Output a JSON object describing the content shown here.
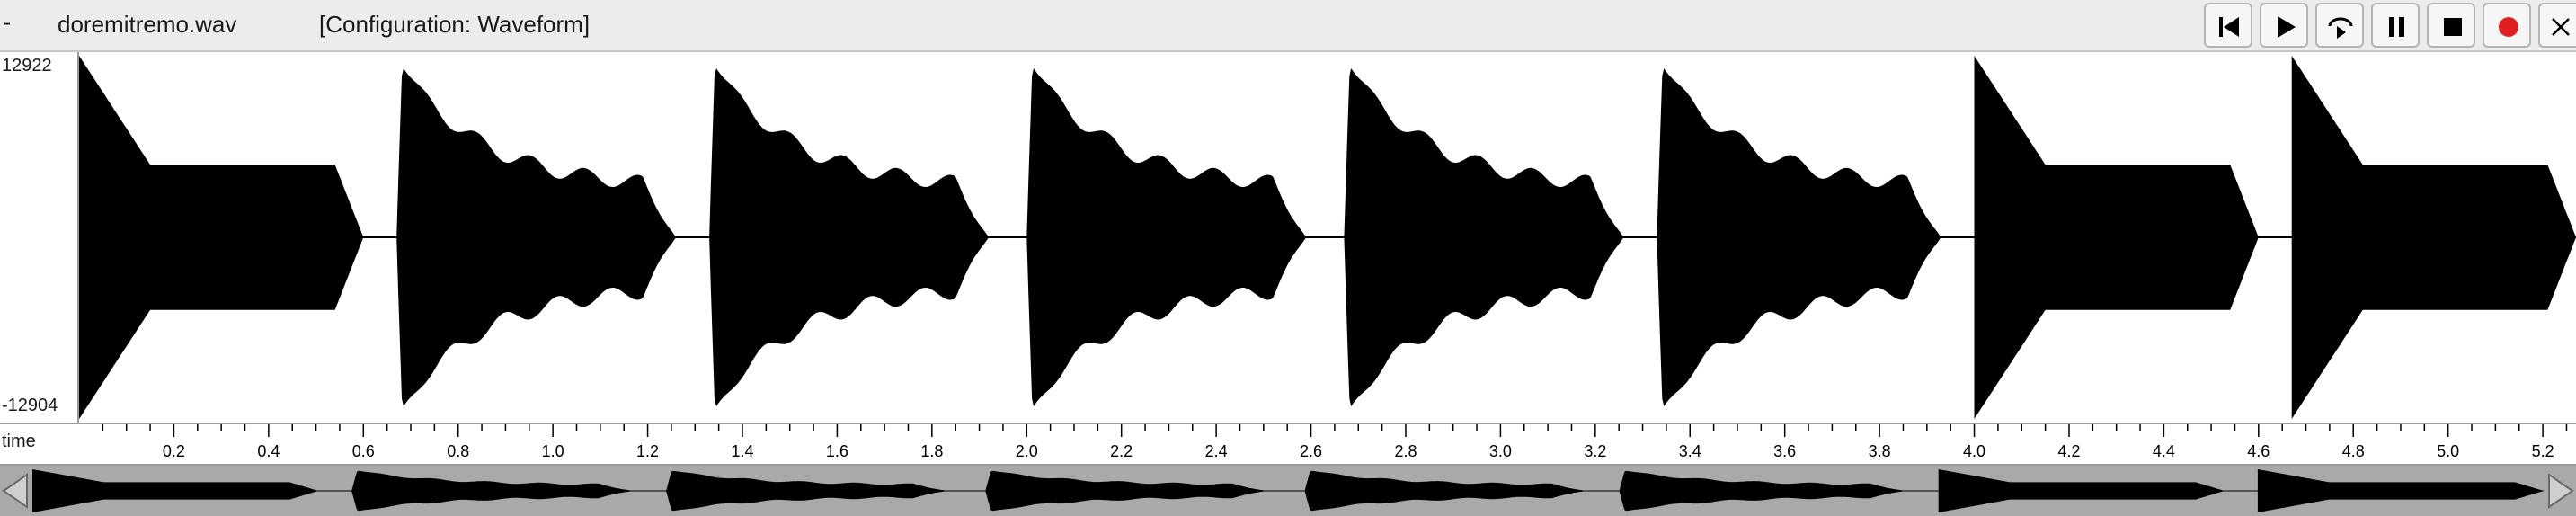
{
  "titlebar": {
    "menu_label": "-",
    "filename": "doremitremo.wav",
    "configuration": "[Configuration: Waveform]"
  },
  "transport": {
    "buttons": [
      {
        "name": "skip-to-start",
        "icon": "skip-back-icon"
      },
      {
        "name": "play",
        "icon": "play-icon"
      },
      {
        "name": "loop-play",
        "icon": "loop-icon"
      },
      {
        "name": "pause",
        "icon": "pause-icon"
      },
      {
        "name": "stop",
        "icon": "stop-icon"
      },
      {
        "name": "record",
        "icon": "record-icon",
        "color": "#e02020"
      },
      {
        "name": "close",
        "icon": "close-icon"
      }
    ]
  },
  "amplitude": {
    "max_label": "12922",
    "min_label": "-12904"
  },
  "time_axis": {
    "caption": "time",
    "start": 0.0,
    "end": 5.27,
    "major_step": 0.2,
    "minor_step": 0.05,
    "tick_labels": [
      "0.2",
      "0.4",
      "0.6",
      "0.8",
      "1.0",
      "1.2",
      "1.4",
      "1.6",
      "1.8",
      "2.0",
      "2.2",
      "2.4",
      "2.6",
      "2.8",
      "3.0",
      "3.2",
      "3.4",
      "3.6",
      "3.8",
      "4.0",
      "4.2",
      "4.4",
      "4.6",
      "4.8",
      "5.0",
      "5.2"
    ]
  },
  "waveform": {
    "color": "#000000",
    "amplitude_max": 12922,
    "notes": [
      {
        "start": 0.0,
        "end": 0.6,
        "shape": "steady"
      },
      {
        "start": 0.67,
        "end": 1.26,
        "shape": "tremolo"
      },
      {
        "start": 1.33,
        "end": 1.92,
        "shape": "tremolo"
      },
      {
        "start": 2.0,
        "end": 2.59,
        "shape": "tremolo"
      },
      {
        "start": 2.67,
        "end": 3.26,
        "shape": "tremolo"
      },
      {
        "start": 3.33,
        "end": 3.93,
        "shape": "tremolo"
      },
      {
        "start": 4.0,
        "end": 4.6,
        "shape": "steady"
      },
      {
        "start": 4.67,
        "end": 5.27,
        "shape": "steady"
      }
    ]
  },
  "overview": {
    "background": "#a9a9a9",
    "wave_color": "#000000"
  }
}
